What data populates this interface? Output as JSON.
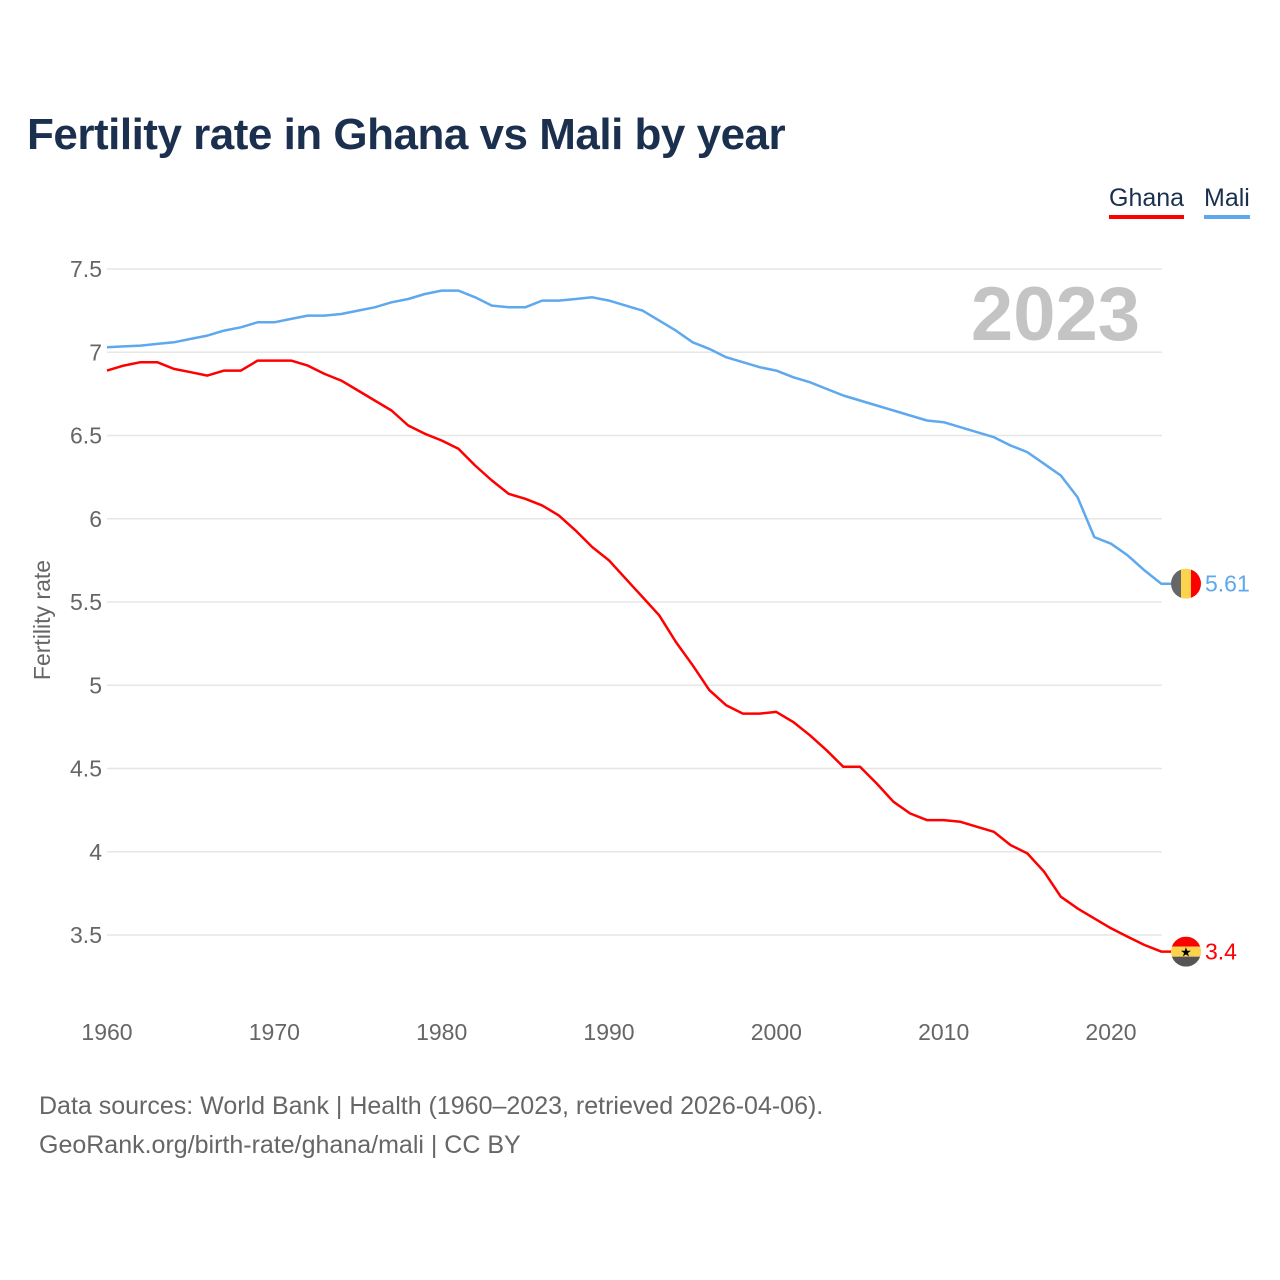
{
  "chart_data": {
    "type": "line",
    "title": "Fertility rate in Ghana vs Mali by year",
    "xlabel": "",
    "ylabel": "Fertility rate",
    "xlim": [
      1960,
      2023
    ],
    "ylim": [
      3.2,
      7.6
    ],
    "x_ticks": [
      "1960",
      "1970",
      "1980",
      "1990",
      "2000",
      "2010",
      "2020"
    ],
    "y_ticks": [
      "3.5",
      "4",
      "4.5",
      "5",
      "5.5",
      "6",
      "6.5",
      "7",
      "7.5"
    ],
    "grid": true,
    "legend_position": "top-right",
    "year_watermark": "2023",
    "series": [
      {
        "name": "Ghana",
        "color": "#ff0000",
        "end_label": "3.4",
        "flag": "ghana-flag",
        "values": [
          6.89,
          6.92,
          6.94,
          6.94,
          6.9,
          6.88,
          6.86,
          6.89,
          6.89,
          6.95,
          6.95,
          6.95,
          6.92,
          6.87,
          6.83,
          6.77,
          6.71,
          6.65,
          6.56,
          6.51,
          6.47,
          6.42,
          6.32,
          6.23,
          6.15,
          6.12,
          6.08,
          6.02,
          5.93,
          5.83,
          5.75,
          5.64,
          5.53,
          5.42,
          5.26,
          5.12,
          4.97,
          4.88,
          4.83,
          4.83,
          4.84,
          4.78,
          4.7,
          4.61,
          4.51,
          4.51,
          4.41,
          4.3,
          4.23,
          4.19,
          4.19,
          4.18,
          4.15,
          4.12,
          4.04,
          3.99,
          3.88,
          3.73,
          3.66,
          3.6,
          3.54,
          3.49,
          3.44,
          3.4
        ]
      },
      {
        "name": "Mali",
        "color": "#5ea8ee",
        "end_label": "5.61",
        "flag": "mali-flag",
        "values": [
          7.03,
          7.035,
          7.04,
          7.05,
          7.06,
          7.08,
          7.1,
          7.13,
          7.15,
          7.18,
          7.18,
          7.2,
          7.22,
          7.22,
          7.23,
          7.25,
          7.27,
          7.3,
          7.32,
          7.35,
          7.37,
          7.37,
          7.33,
          7.28,
          7.27,
          7.27,
          7.31,
          7.31,
          7.32,
          7.33,
          7.31,
          7.28,
          7.25,
          7.19,
          7.13,
          7.06,
          7.02,
          6.97,
          6.94,
          6.91,
          6.89,
          6.85,
          6.82,
          6.78,
          6.74,
          6.71,
          6.68,
          6.65,
          6.62,
          6.59,
          6.58,
          6.55,
          6.52,
          6.49,
          6.44,
          6.4,
          6.33,
          6.26,
          6.13,
          5.89,
          5.85,
          5.78,
          5.69,
          5.61
        ]
      }
    ]
  },
  "footer": {
    "line1": "Data sources: World Bank | Health (1960–2023, retrieved 2026-04-06).",
    "line2": "GeoRank.org/birth-rate/ghana/mali | CC BY"
  }
}
